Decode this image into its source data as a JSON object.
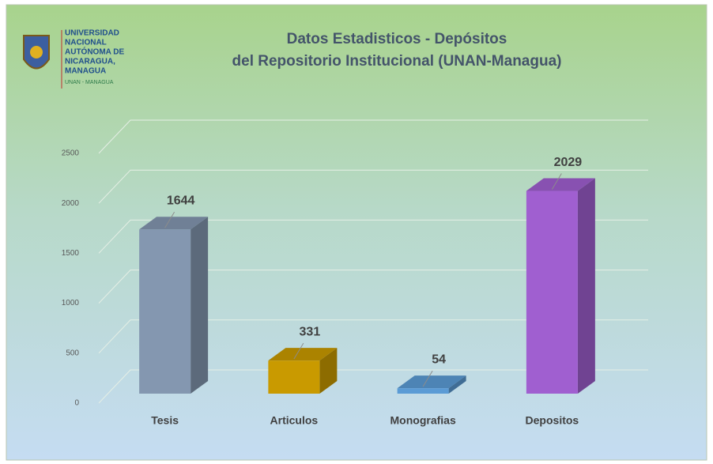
{
  "logo": {
    "lines": [
      "UNIVERSIDAD",
      "NACIONAL",
      "AUTÓNOMA DE",
      "NICARAGUA,",
      "MANAGUA"
    ],
    "tagline": "UNAN - MANAGUA"
  },
  "chart_data": {
    "type": "bar3d",
    "title": [
      "Datos Estadisticos - Depósitos",
      "del Repositorio Institucional (UNAN-Managua)"
    ],
    "categories": [
      "Tesis",
      "Articulos",
      "Monografias",
      "Depositos"
    ],
    "values": [
      1644,
      331,
      54,
      2029
    ],
    "colors": [
      "#8497b0",
      "#c99a00",
      "#5b9bd5",
      "#a05fd0"
    ],
    "ylim": [
      0,
      2500
    ],
    "yticks": [
      0,
      500,
      1000,
      1500,
      2000,
      2500
    ],
    "grid": true
  }
}
